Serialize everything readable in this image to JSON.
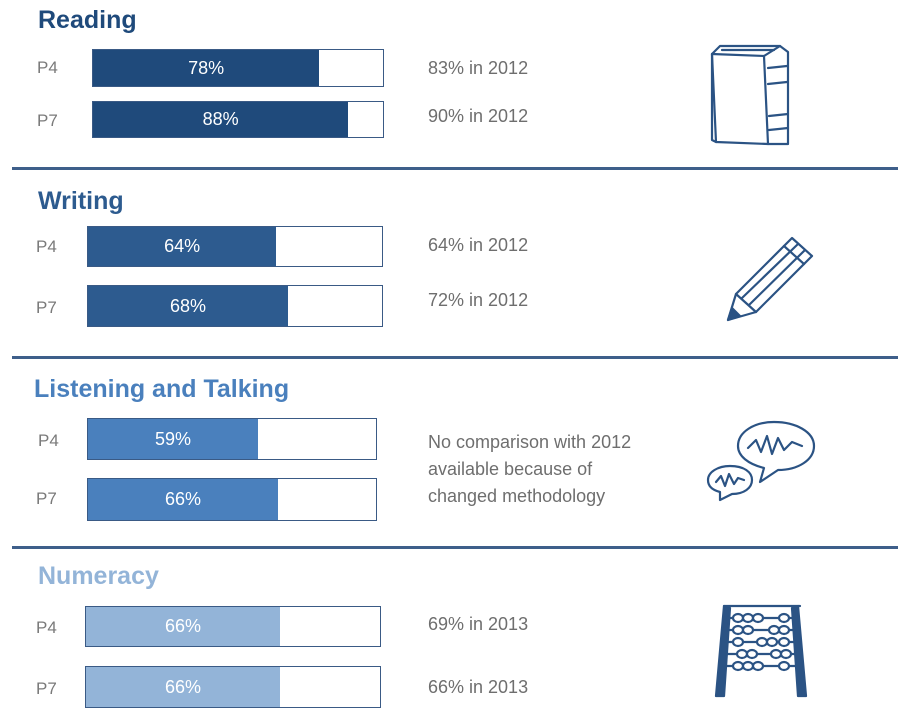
{
  "colors": {
    "reading": "#1f4a7b",
    "writing": "#2d5b8f",
    "listening": "#4a80bd",
    "numeracy": "#93b4d8",
    "divider": "#3e5f8a",
    "icon_stroke": "#2b5384"
  },
  "chart_data": {
    "type": "bar",
    "orientation": "horizontal",
    "xlim": [
      0,
      100
    ],
    "sections": [
      {
        "title": "Reading",
        "icon": "book-icon",
        "rows": [
          {
            "label": "P4",
            "value": 78,
            "value_label": "78%",
            "comparison": "83% in 2012"
          },
          {
            "label": "P7",
            "value": 88,
            "value_label": "88%",
            "comparison": "90% in 2012"
          }
        ]
      },
      {
        "title": "Writing",
        "icon": "pencil-icon",
        "rows": [
          {
            "label": "P4",
            "value": 64,
            "value_label": "64%",
            "comparison": "64% in 2012"
          },
          {
            "label": "P7",
            "value": 68,
            "value_label": "68%",
            "comparison": "72% in 2012"
          }
        ]
      },
      {
        "title": "Listening and Talking",
        "icon": "speech-bubbles-icon",
        "note_lines": [
          "No comparison with 2012",
          "available because of",
          "changed methodology"
        ],
        "rows": [
          {
            "label": "P4",
            "value": 59,
            "value_label": "59%"
          },
          {
            "label": "P7",
            "value": 66,
            "value_label": "66%"
          }
        ]
      },
      {
        "title": "Numeracy",
        "icon": "abacus-icon",
        "rows": [
          {
            "label": "P4",
            "value": 66,
            "value_label": "66%",
            "comparison": "69% in 2013"
          },
          {
            "label": "P7",
            "value": 66,
            "value_label": "66%",
            "comparison": "66% in 2013"
          }
        ]
      }
    ]
  }
}
